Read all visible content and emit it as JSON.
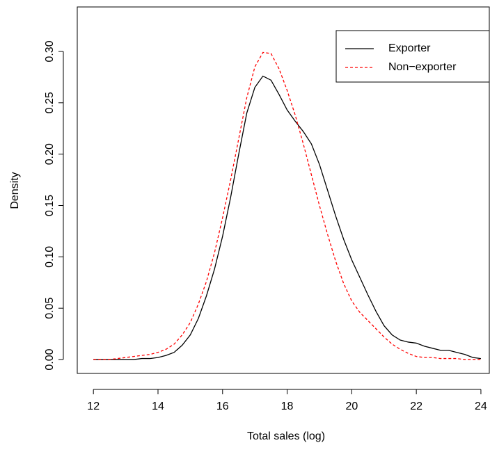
{
  "chart_data": {
    "type": "line",
    "xlabel": "Total sales (log)",
    "ylabel": "Density",
    "x": [
      12,
      12.25,
      12.5,
      12.75,
      13,
      13.25,
      13.5,
      13.75,
      14,
      14.25,
      14.5,
      14.75,
      15,
      15.25,
      15.5,
      15.75,
      16,
      16.25,
      16.5,
      16.75,
      17,
      17.25,
      17.5,
      17.75,
      18,
      18.25,
      18.5,
      18.75,
      19,
      19.25,
      19.5,
      19.75,
      20,
      20.25,
      20.5,
      20.75,
      21,
      21.25,
      21.5,
      21.75,
      22,
      22.25,
      22.5,
      22.75,
      23,
      23.25,
      23.5,
      23.75,
      24
    ],
    "series": [
      {
        "name": "Exporter",
        "color": "#000000",
        "linestyle": "solid",
        "values": [
          0,
          0,
          0,
          0,
          0,
          0,
          0.001,
          0.001,
          0.002,
          0.004,
          0.007,
          0.014,
          0.024,
          0.04,
          0.062,
          0.088,
          0.12,
          0.158,
          0.2,
          0.24,
          0.265,
          0.276,
          0.272,
          0.258,
          0.243,
          0.232,
          0.222,
          0.21,
          0.19,
          0.165,
          0.14,
          0.117,
          0.097,
          0.08,
          0.063,
          0.047,
          0.033,
          0.024,
          0.019,
          0.017,
          0.016,
          0.013,
          0.011,
          0.009,
          0.009,
          0.007,
          0.005,
          0.002,
          0.001
        ]
      },
      {
        "name": "Non−exporter",
        "color": "#ff0000",
        "linestyle": "dashed",
        "values": [
          0,
          0,
          0,
          0.001,
          0.002,
          0.003,
          0.004,
          0.005,
          0.007,
          0.01,
          0.015,
          0.024,
          0.036,
          0.054,
          0.076,
          0.104,
          0.138,
          0.175,
          0.215,
          0.255,
          0.285,
          0.299,
          0.298,
          0.283,
          0.262,
          0.238,
          0.21,
          0.18,
          0.15,
          0.122,
          0.096,
          0.074,
          0.057,
          0.046,
          0.038,
          0.03,
          0.022,
          0.015,
          0.01,
          0.006,
          0.003,
          0.002,
          0.002,
          0.001,
          0.001,
          0.001,
          0,
          0,
          0
        ]
      }
    ],
    "xlim": [
      11.5,
      24.26
    ],
    "ylim": [
      -0.0135,
      0.3433
    ],
    "xticks": [
      12,
      14,
      16,
      18,
      20,
      22,
      24
    ],
    "yticks": [
      {
        "value": 0,
        "label": "0.00"
      },
      {
        "value": 0.05,
        "label": "0.05"
      },
      {
        "value": 0.1,
        "label": "0.10"
      },
      {
        "value": 0.15,
        "label": "0.15"
      },
      {
        "value": 0.2,
        "label": "0.20"
      },
      {
        "value": 0.25,
        "label": "0.25"
      },
      {
        "value": 0.3,
        "label": "0.30"
      }
    ],
    "legend": "top-right"
  }
}
